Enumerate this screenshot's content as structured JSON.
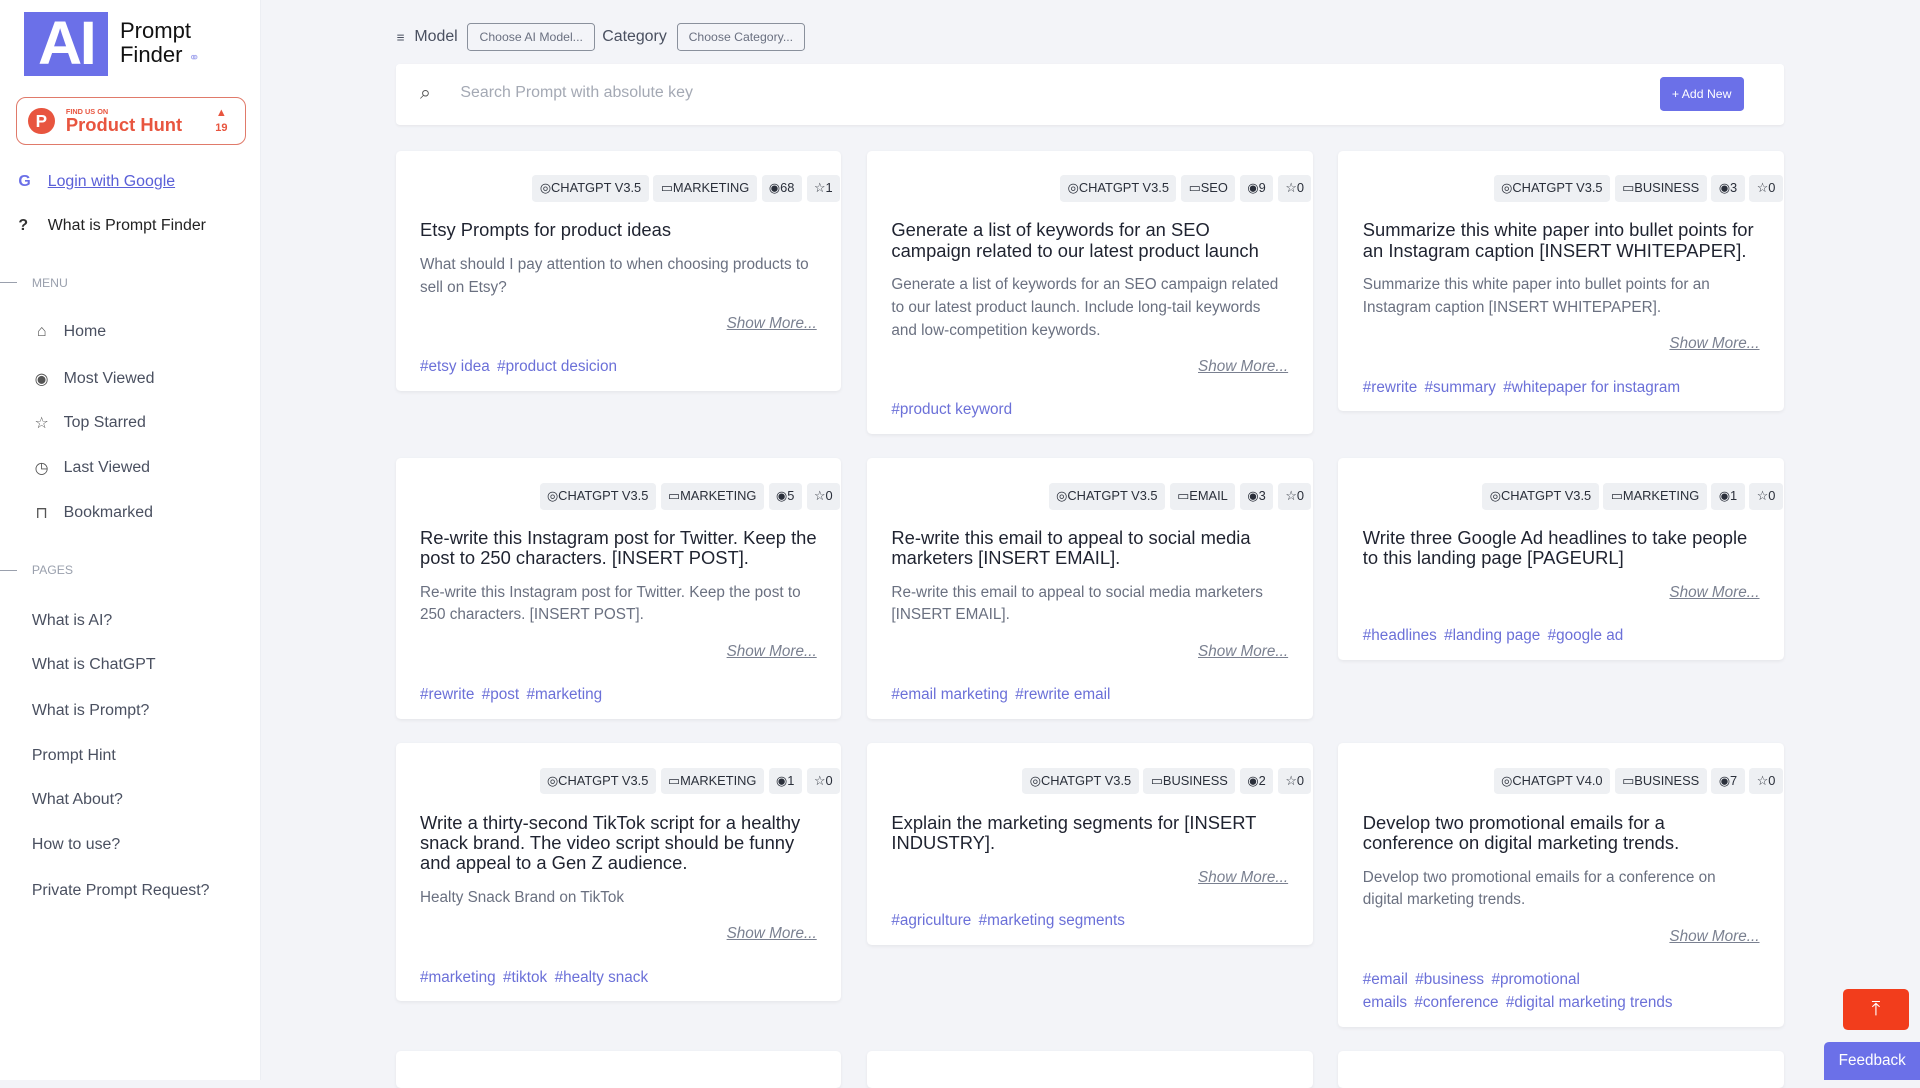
{
  "brand": {
    "logo_mark": "AI",
    "name_line1": "Prompt",
    "name_line2": "Finder",
    "accent": "#6b70e8"
  },
  "product_hunt": {
    "small": "FIND US ON",
    "big": "Product Hunt",
    "votes": "19",
    "color": "#e8553f"
  },
  "sidebar": {
    "login": "Login with Google",
    "what_is": "What is Prompt Finder",
    "menu_title": "MENU",
    "menu": [
      {
        "label": "Home",
        "icon": "home-icon"
      },
      {
        "label": "Most Viewed",
        "icon": "eye-icon"
      },
      {
        "label": "Top Starred",
        "icon": "star-icon"
      },
      {
        "label": "Last Viewed",
        "icon": "history-icon"
      },
      {
        "label": "Bookmarked",
        "icon": "bookmark-icon"
      }
    ],
    "pages_title": "PAGES",
    "pages": [
      "What is AI?",
      "What is ChatGPT",
      "What is Prompt?",
      "Prompt Hint",
      "What About?",
      "How to use?",
      "Private Prompt Request?"
    ]
  },
  "filters": {
    "model_label": "Model",
    "model_placeholder": "Choose AI Model...",
    "category_label": "Category",
    "category_placeholder": "Choose Category..."
  },
  "search": {
    "placeholder": "Search Prompt with absolute key",
    "add_new": "+ Add New"
  },
  "show_more": "Show More...",
  "cards": [
    {
      "model": "CHATGPT V3.5",
      "category": "MARKETING",
      "views": "68",
      "stars": "1",
      "title": "Etsy Prompts for product ideas",
      "desc": "What should I pay attention to when choosing products to sell on Etsy?",
      "tags": [
        "#etsy idea",
        "#product desicion"
      ]
    },
    {
      "model": "CHATGPT V3.5",
      "category": "SEO",
      "views": "9",
      "stars": "0",
      "title": "Generate a list of keywords for an SEO campaign related to our latest product launch",
      "desc": "Generate a list of keywords for an SEO campaign related to our latest product launch. Include long-tail keywords and low-competition keywords.",
      "tags": [
        "#product keyword"
      ]
    },
    {
      "model": "CHATGPT V3.5",
      "category": "BUSINESS",
      "views": "3",
      "stars": "0",
      "title": "Summarize this white paper into bullet points for an Instagram caption [INSERT WHITEPAPER].",
      "desc": "Summarize this white paper into bullet points for an Instagram caption [INSERT WHITEPAPER].",
      "tags": [
        "#rewrite",
        "#summary",
        "#whitepaper for instagram"
      ]
    },
    {
      "model": "CHATGPT V3.5",
      "category": "MARKETING",
      "views": "5",
      "stars": "0",
      "title": "Re-write this Instagram post for Twitter. Keep the post to 250 characters. [INSERT POST].",
      "desc": "Re-write this Instagram post for Twitter. Keep the post to 250 characters. [INSERT POST].",
      "tags": [
        "#rewrite",
        "#post",
        "#marketing"
      ]
    },
    {
      "model": "CHATGPT V3.5",
      "category": "EMAIL",
      "views": "3",
      "stars": "0",
      "title": "Re-write this email to appeal to social media marketers [INSERT EMAIL].",
      "desc": "Re-write this email to appeal to social media marketers [INSERT EMAIL].",
      "tags": [
        "#email marketing",
        "#rewrite email"
      ]
    },
    {
      "model": "CHATGPT V3.5",
      "category": "MARKETING",
      "views": "1",
      "stars": "0",
      "title": "Write three Google Ad headlines to take people to this landing page [PAGEURL]",
      "desc": "",
      "tags": [
        "#headlines",
        "#landing page",
        "#google ad"
      ]
    },
    {
      "model": "CHATGPT V3.5",
      "category": "MARKETING",
      "views": "1",
      "stars": "0",
      "title": "Write a thirty-second TikTok script for a healthy snack brand. The video script should be funny and appeal to a Gen Z audience.",
      "desc": "Healty Snack Brand on TikTok",
      "tags": [
        "#marketing",
        "#tiktok",
        "#healty snack"
      ]
    },
    {
      "model": "CHATGPT V3.5",
      "category": "BUSINESS",
      "views": "2",
      "stars": "0",
      "title": "Explain the marketing segments for [INSERT INDUSTRY].",
      "desc": "",
      "tags": [
        "#agriculture",
        "#marketing segments"
      ]
    },
    {
      "model": "CHATGPT V4.0",
      "category": "BUSINESS",
      "views": "7",
      "stars": "0",
      "title": "Develop two promotional emails for a conference on digital marketing trends.",
      "desc": "Develop two promotional emails for a conference on digital marketing trends.",
      "tags": [
        "#email",
        "#business",
        "#promotional emails",
        "#conference",
        "#digital marketing trends"
      ]
    }
  ],
  "feedback": "Feedback",
  "scroll_top_icon": "arrow-up-to-top-icon"
}
